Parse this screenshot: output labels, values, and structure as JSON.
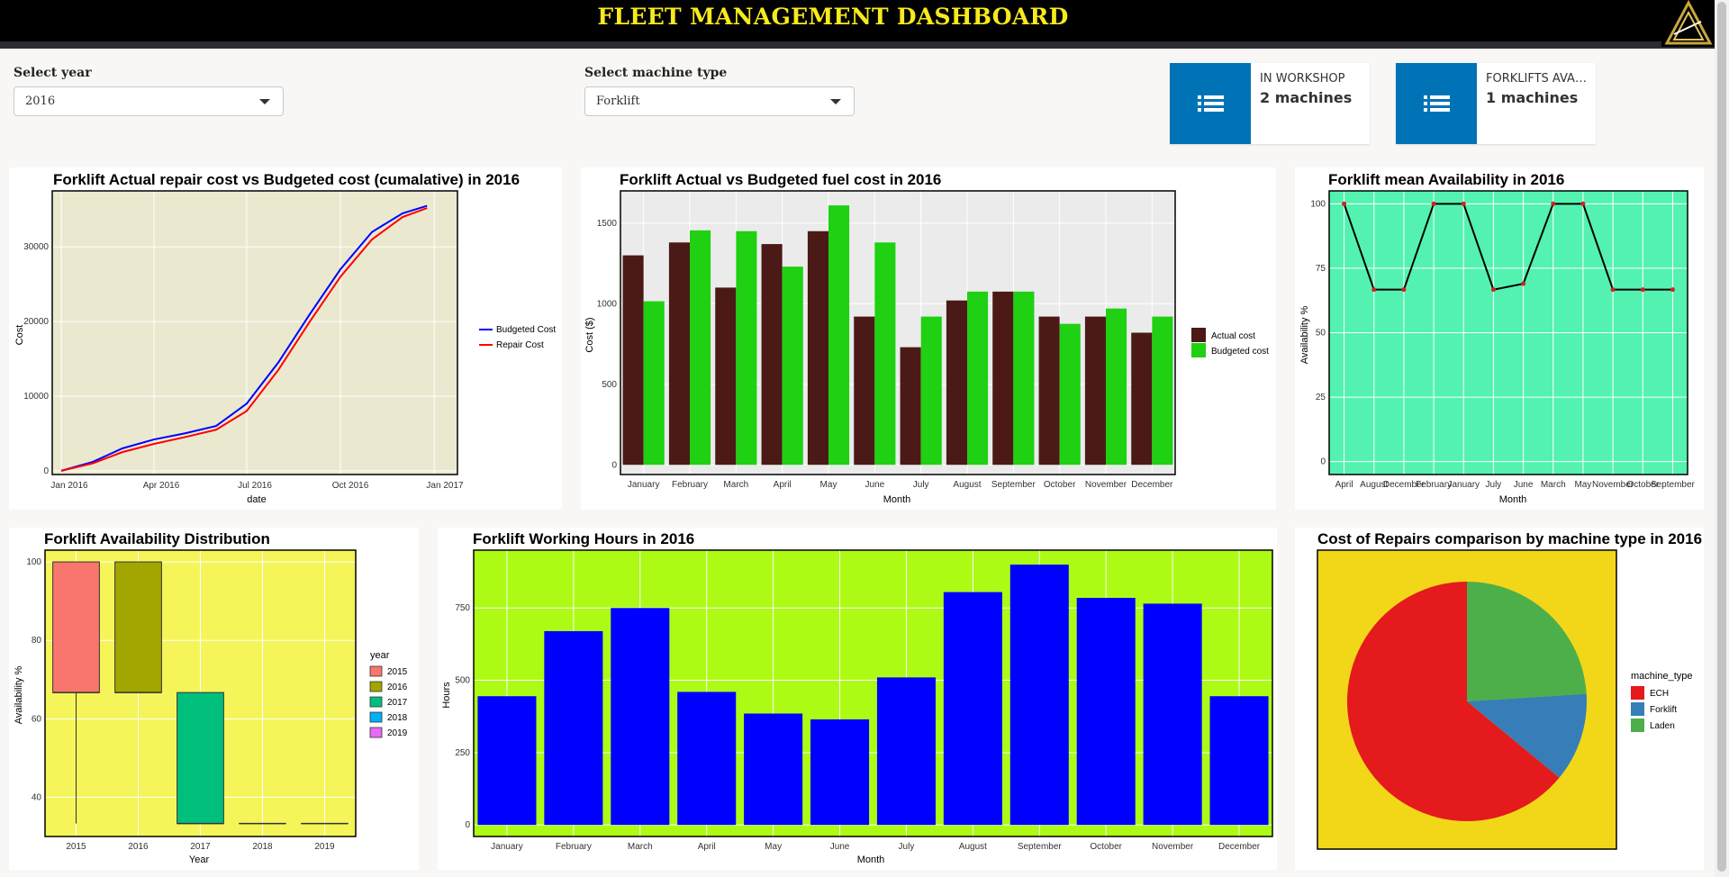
{
  "header": {
    "title": "FLEET MANAGEMENT DASHBOARD",
    "logo_icon": "triangle-arrow-logo-icon"
  },
  "controls": {
    "year_label": "Select year",
    "year_value": "2016",
    "machine_label": "Select machine type",
    "machine_value": "Forklift"
  },
  "infoboxes": [
    {
      "text": "IN WORKSHOP",
      "number": "2 machines",
      "icon": "list-icon",
      "color": "#0073b7"
    },
    {
      "text": "FORKLIFTS AVAILABLE",
      "number": "1 machines",
      "icon": "list-icon",
      "color": "#0073b7"
    }
  ],
  "charts": {
    "cumulative": {
      "title": "Forklift Actual repair cost vs Budgeted cost (cumalative) in  2016",
      "xlabel": "date",
      "ylabel": "Cost",
      "xticks": [
        "Jan 2016",
        "Apr 2016",
        "Jul 2016",
        "Oct 2016",
        "Jan 2017"
      ],
      "legend": [
        "Budgeted Cost",
        "Repair Cost"
      ]
    },
    "fuel": {
      "title": "Forklift Actual vs Budgeted fuel cost in 2016",
      "xlabel": "Month",
      "ylabel": "Cost ($)",
      "legend": [
        "Actual cost",
        "Budgeted cost"
      ]
    },
    "availability": {
      "title": "Forklift mean Availability in 2016",
      "xlabel": "Month",
      "ylabel": "Availability %"
    },
    "distribution": {
      "title": "Forklift Availability Distribution",
      "xlabel": "Year",
      "ylabel": "Availability %",
      "legend_title": "year"
    },
    "hours": {
      "title": "Forklift Working Hours in 2016",
      "xlabel": "Month",
      "ylabel": "Hours"
    },
    "pie": {
      "title": "Cost of Repairs comparison by machine type in  2016",
      "legend_title": "machine_type"
    }
  },
  "chart_data": [
    {
      "type": "line",
      "title": "Forklift Actual repair cost vs Budgeted cost (cumalative) in  2016",
      "xlabel": "date",
      "ylabel": "Cost",
      "x": [
        "2016-01-01",
        "2016-02-01",
        "2016-03-01",
        "2016-04-01",
        "2016-05-01",
        "2016-06-01",
        "2016-07-01",
        "2016-08-01",
        "2016-09-01",
        "2016-10-01",
        "2016-11-01",
        "2016-12-01",
        "2016-12-25"
      ],
      "series": [
        {
          "name": "Budgeted Cost",
          "color": "#0000ff",
          "values": [
            0,
            1200,
            3000,
            4200,
            5000,
            6000,
            9000,
            14500,
            21000,
            27000,
            32000,
            34500,
            35500
          ]
        },
        {
          "name": "Repair Cost",
          "color": "#ff0000",
          "values": [
            0,
            1000,
            2500,
            3600,
            4500,
            5500,
            8000,
            13500,
            20000,
            26000,
            31000,
            34000,
            35200
          ]
        }
      ],
      "yticks": [
        0,
        10000,
        20000,
        30000
      ],
      "ylim": [
        -500,
        37500
      ],
      "background": "#eae9cf"
    },
    {
      "type": "bar",
      "title": "Forklift Actual vs Budgeted fuel cost in 2016",
      "xlabel": "Month",
      "ylabel": "Cost ($)",
      "categories": [
        "January",
        "February",
        "March",
        "April",
        "May",
        "June",
        "July",
        "August",
        "September",
        "October",
        "November",
        "December"
      ],
      "series": [
        {
          "name": "Actual cost",
          "color": "#4b1a17",
          "values": [
            1300,
            1380,
            1100,
            1370,
            1450,
            920,
            730,
            1020,
            1075,
            920,
            920,
            820
          ]
        },
        {
          "name": "Budgeted cost",
          "color": "#1fd013",
          "values": [
            1015,
            1455,
            1450,
            1230,
            1610,
            1380,
            920,
            1075,
            1075,
            875,
            970,
            920
          ]
        }
      ],
      "yticks": [
        0,
        500,
        1000,
        1500
      ],
      "ylim": [
        -60,
        1700
      ],
      "background": "#ebebeb"
    },
    {
      "type": "line",
      "title": "Forklift mean Availability in 2016",
      "xlabel": "Month",
      "ylabel": "Availability %",
      "categories": [
        "April",
        "August",
        "December",
        "February",
        "January",
        "July",
        "June",
        "March",
        "May",
        "November",
        "October",
        "September"
      ],
      "values": [
        100,
        66.7,
        66.7,
        100,
        100,
        66.7,
        69,
        100,
        100,
        66.7,
        66.7,
        66.7
      ],
      "yticks": [
        0,
        25,
        50,
        75,
        100
      ],
      "ylim": [
        -5,
        105
      ],
      "background": "#54f2b0"
    },
    {
      "type": "box",
      "title": "Forklift Availability Distribution",
      "xlabel": "Year",
      "ylabel": "Availability %",
      "categories": [
        "2015",
        "2016",
        "2017",
        "2018",
        "2019"
      ],
      "boxes": [
        {
          "year": "2015",
          "min": 33.3,
          "q1": 66.7,
          "median": 66.7,
          "q3": 100,
          "max": 100,
          "color": "#f8766d"
        },
        {
          "year": "2016",
          "min": 66.7,
          "q1": 66.7,
          "median": 66.7,
          "q3": 100,
          "max": 100,
          "color": "#a3a500"
        },
        {
          "year": "2017",
          "min": 33.3,
          "q1": 33.3,
          "median": 33.3,
          "q3": 66.7,
          "max": 66.7,
          "color": "#00bf7d"
        },
        {
          "year": "2018",
          "min": 33.3,
          "q1": 33.3,
          "median": 33.3,
          "q3": 33.3,
          "max": 33.3,
          "color": "#00b0f6"
        },
        {
          "year": "2019",
          "min": 33.3,
          "q1": 33.3,
          "median": 33.3,
          "q3": 33.3,
          "max": 33.3,
          "color": "#e76bf3"
        }
      ],
      "yticks": [
        40,
        60,
        80,
        100
      ],
      "ylim": [
        30,
        103
      ],
      "background": "#f5f55a"
    },
    {
      "type": "bar",
      "title": "Forklift Working Hours in 2016",
      "xlabel": "Month",
      "ylabel": "Hours",
      "categories": [
        "January",
        "February",
        "March",
        "April",
        "May",
        "June",
        "July",
        "August",
        "September",
        "October",
        "November",
        "December"
      ],
      "values": [
        445,
        670,
        750,
        460,
        385,
        365,
        510,
        805,
        900,
        785,
        765,
        445
      ],
      "color": "#0000ff",
      "yticks": [
        0,
        250,
        500,
        750
      ],
      "ylim": [
        -40,
        950
      ],
      "background": "#adfb15"
    },
    {
      "type": "pie",
      "title": "Cost of Repairs comparison by machine type in  2016",
      "slices": [
        {
          "label": "ECH",
          "value": 64,
          "color": "#e41a1c"
        },
        {
          "label": "Forklift",
          "value": 12,
          "color": "#377eb8"
        },
        {
          "label": "Laden",
          "value": 24,
          "color": "#4daf4a"
        }
      ],
      "background": "#f2d718"
    }
  ]
}
